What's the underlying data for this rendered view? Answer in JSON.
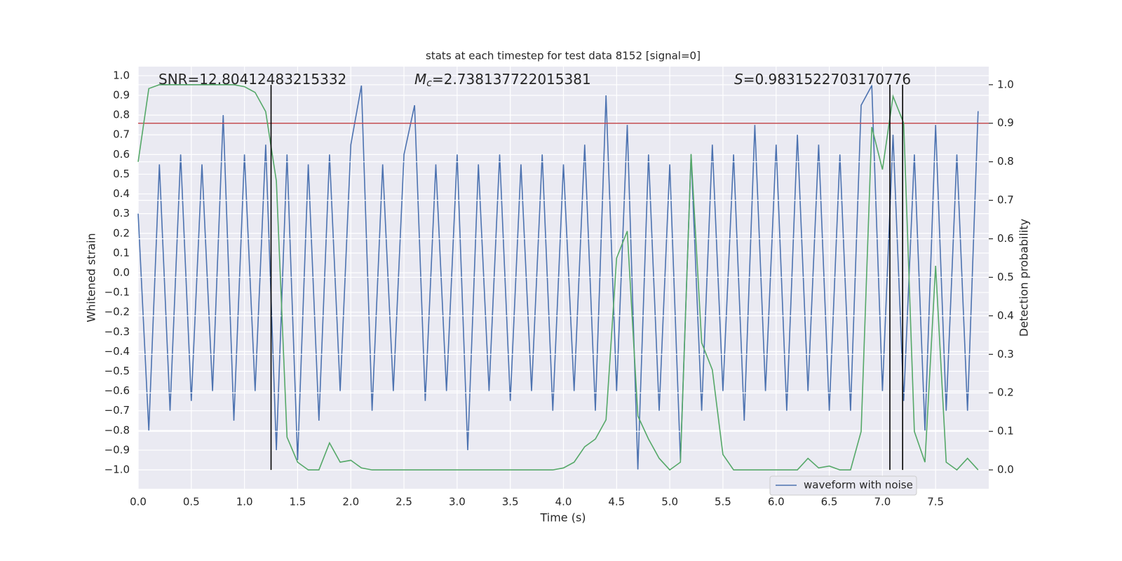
{
  "chart_data": {
    "type": "line",
    "title": "stats at each timestep for test data 8152 [signal=0]",
    "xlabel": "Time (s)",
    "ylabel": "Whitened strain",
    "y2label": "Detection probability",
    "annotations": [
      {
        "text": "SNR=12.80412483215332"
      },
      {
        "symbol": "M",
        "subscript": "c",
        "text": "=2.738137722015381"
      },
      {
        "symbol": "S",
        "text": "=0.9831522703170776"
      }
    ],
    "x": [
      0.0,
      0.1,
      0.2,
      0.3,
      0.4,
      0.5,
      0.6,
      0.7,
      0.8,
      0.9,
      1.0,
      1.1,
      1.2,
      1.3,
      1.4,
      1.5,
      1.6,
      1.7,
      1.8,
      1.9,
      2.0,
      2.1,
      2.2,
      2.3,
      2.4,
      2.5,
      2.6,
      2.7,
      2.8,
      2.9,
      3.0,
      3.1,
      3.2,
      3.3,
      3.4,
      3.5,
      3.6,
      3.7,
      3.8,
      3.9,
      4.0,
      4.1,
      4.2,
      4.3,
      4.4,
      4.5,
      4.6,
      4.7,
      4.8,
      4.9,
      5.0,
      5.1,
      5.2,
      5.3,
      5.4,
      5.5,
      5.6,
      5.7,
      5.8,
      5.9,
      6.0,
      6.1,
      6.2,
      6.3,
      6.4,
      6.5,
      6.6,
      6.7,
      6.8,
      6.9,
      7.0,
      7.1,
      7.2,
      7.3,
      7.4,
      7.5,
      7.6,
      7.7,
      7.8,
      7.9
    ],
    "series": [
      {
        "name": "waveform with noise",
        "color": "#4c72b0",
        "values": [
          0.3,
          -0.8,
          0.55,
          -0.7,
          0.6,
          -0.65,
          0.55,
          -0.6,
          0.8,
          -0.75,
          0.6,
          -0.6,
          0.65,
          -0.9,
          0.6,
          -0.95,
          0.55,
          -0.75,
          0.6,
          -0.6,
          0.65,
          0.95,
          -0.7,
          0.55,
          -0.6,
          0.6,
          0.85,
          -0.65,
          0.55,
          -0.6,
          0.6,
          -0.9,
          0.55,
          -0.6,
          0.6,
          -0.65,
          0.55,
          -0.6,
          0.6,
          -0.7,
          0.55,
          -0.6,
          0.65,
          -0.7,
          0.9,
          -0.6,
          0.75,
          -1.0,
          0.6,
          -0.7,
          0.55,
          -0.95,
          0.6,
          -0.7,
          0.65,
          -0.6,
          0.6,
          -0.75,
          0.75,
          -0.6,
          0.65,
          -0.7,
          0.7,
          -0.6,
          0.65,
          -0.7,
          0.6,
          -0.7,
          0.85,
          0.95,
          -0.6,
          0.7,
          -0.65,
          0.6,
          -0.8,
          0.75,
          -0.7,
          0.6,
          -0.7,
          0.82
        ]
      },
      {
        "color": "#55a868",
        "axis": "y2",
        "values": [
          0.8,
          0.99,
          1.0,
          1.0,
          1.0,
          1.0,
          1.0,
          1.0,
          1.0,
          1.0,
          0.995,
          0.98,
          0.93,
          0.75,
          0.085,
          0.02,
          0.0,
          0.0,
          0.07,
          0.02,
          0.025,
          0.005,
          0.0,
          0.0,
          0.0,
          0.0,
          0.0,
          0.0,
          0.0,
          0.0,
          0.0,
          0.0,
          0.0,
          0.0,
          0.0,
          0.0,
          0.0,
          0.0,
          0.0,
          0.0,
          0.005,
          0.02,
          0.06,
          0.08,
          0.13,
          0.55,
          0.62,
          0.14,
          0.08,
          0.03,
          0.0,
          0.02,
          0.82,
          0.33,
          0.26,
          0.04,
          0.0,
          0.0,
          0.0,
          0.0,
          0.0,
          0.0,
          0.0,
          0.03,
          0.005,
          0.01,
          0.0,
          0.0,
          0.1,
          0.89,
          0.78,
          0.97,
          0.9,
          0.1,
          0.02,
          0.53,
          0.02,
          0.0,
          0.03,
          0.0
        ]
      }
    ],
    "hline": {
      "value": 0.9,
      "axis": "y2",
      "color": "#c44e52"
    },
    "vlines": {
      "x": [
        1.25,
        7.07,
        7.19
      ],
      "y2range": [
        0,
        1
      ],
      "color": "#000000"
    },
    "xlim": [
      0,
      8.0
    ],
    "xticks": [
      {
        "value": 0,
        "label": "0.0"
      },
      0.5,
      {
        "value": 1,
        "label": "1.0"
      },
      1.5,
      {
        "value": 2,
        "label": "2.0"
      },
      2.5,
      {
        "value": 3,
        "label": "3.0"
      },
      3.5,
      {
        "value": 4,
        "label": "4.0"
      },
      4.5,
      {
        "value": 5,
        "label": "5.0"
      },
      5.5,
      {
        "value": 6,
        "label": "6.0"
      },
      6.5,
      {
        "value": 7,
        "label": "7.0"
      },
      7.5
    ],
    "ylim": [
      -1.096,
      1.046
    ],
    "yticks": [
      {
        "value": -1,
        "label": "−1.0"
      },
      {
        "value": -0.9,
        "label": "−0.9"
      },
      {
        "value": -0.8,
        "label": "−0.8"
      },
      {
        "value": -0.7,
        "label": "−0.7"
      },
      {
        "value": -0.6,
        "label": "−0.6"
      },
      {
        "value": -0.5,
        "label": "−0.5"
      },
      {
        "value": -0.4,
        "label": "−0.4"
      },
      {
        "value": -0.3,
        "label": "−0.3"
      },
      {
        "value": -0.2,
        "label": "−0.2"
      },
      {
        "value": -0.1,
        "label": "−0.1"
      },
      {
        "value": 0,
        "label": "0.0"
      },
      0.1,
      0.2,
      0.3,
      0.4,
      0.5,
      0.6,
      0.7,
      0.8,
      0.9,
      {
        "value": 1,
        "label": "1.0"
      }
    ],
    "y2lim": [
      -0.049,
      1.047
    ],
    "y2ticks": [
      {
        "value": 0,
        "label": "0.0"
      },
      0.1,
      0.2,
      0.3,
      0.4,
      0.5,
      0.6,
      0.7,
      0.8,
      0.9,
      {
        "value": 1,
        "label": "1.0"
      }
    ],
    "grid": true,
    "legend": "lower right",
    "background": "#eaeaf2"
  }
}
